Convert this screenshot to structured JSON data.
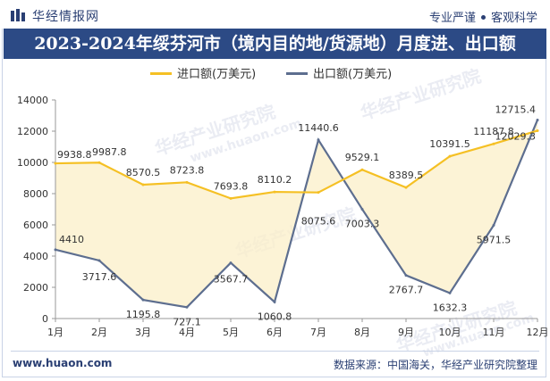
{
  "header": {
    "brand": "华经情报网",
    "tag1": "专业严谨",
    "tag2": "客观科学"
  },
  "title": "2023-2024年绥芬河市（境内目的地/货源地）月度进、出口额",
  "footer": {
    "website": "www.huaon.com",
    "source": "数据来源：中国海关，华经产业研究院整理"
  },
  "watermark": {
    "text": "华经产业研究院",
    "sub": "www.huaon.com"
  },
  "colors": {
    "title_bg": "#2c4a85",
    "import": "#f5c024",
    "export": "#5d6e8f",
    "import_fill": "#fbefc8",
    "export_fill": "#d8dbe6"
  },
  "chart_data": {
    "type": "line",
    "categories": [
      "1月",
      "2月",
      "3月",
      "4月",
      "5月",
      "6月",
      "7月",
      "8月",
      "9月",
      "10月",
      "11月",
      "12月"
    ],
    "series": [
      {
        "name": "进口额(万美元)",
        "values": [
          9938.8,
          9987.8,
          8570.5,
          8723.8,
          7693.8,
          8110.2,
          8075.6,
          9529.1,
          8389.5,
          10391.5,
          11187.8,
          12029.3
        ]
      },
      {
        "name": "出口额(万美元)",
        "values": [
          4410,
          3717.6,
          1195.8,
          727.1,
          3567.7,
          1060.8,
          11440.6,
          7003.3,
          2767.7,
          1632.3,
          5971.5,
          12715.4
        ]
      }
    ],
    "ylim": [
      0,
      14000
    ],
    "yticks": [
      0,
      2000,
      4000,
      6000,
      8000,
      10000,
      12000,
      14000
    ],
    "legend_position": "top-center",
    "grid": false
  }
}
